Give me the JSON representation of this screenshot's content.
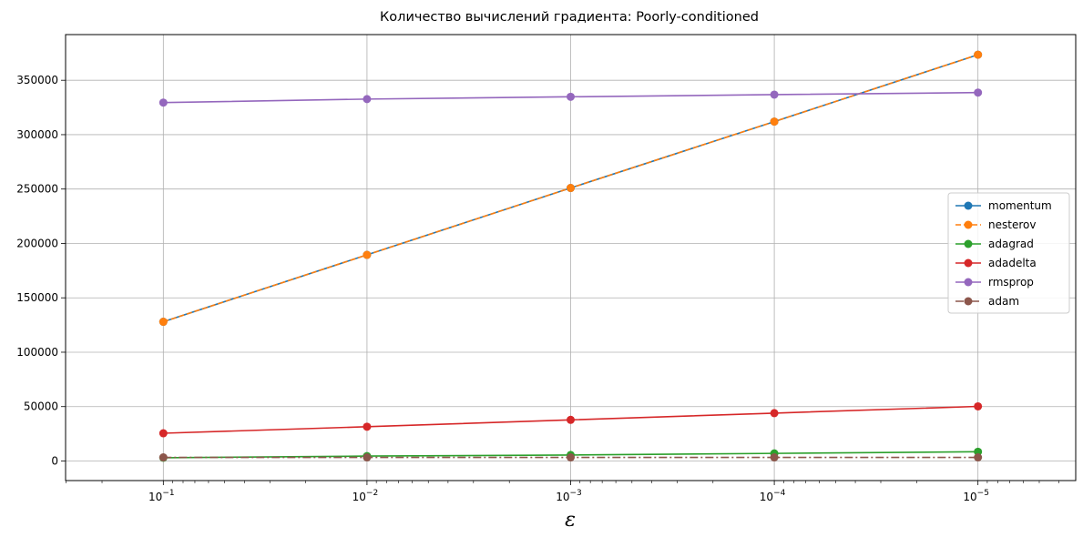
{
  "chart_data": {
    "type": "line",
    "title": "Количество вычислений градиента: Poorly-conditioned",
    "xlabel": "ε",
    "ylabel": "",
    "x_scale": "log",
    "x_inverted": true,
    "x": [
      0.1,
      0.01,
      0.001,
      0.0001,
      1e-05
    ],
    "x_tick_labels": [
      {
        "base": "10",
        "exp": "−1"
      },
      {
        "base": "10",
        "exp": "−2"
      },
      {
        "base": "10",
        "exp": "−3"
      },
      {
        "base": "10",
        "exp": "−4"
      },
      {
        "base": "10",
        "exp": "−5"
      }
    ],
    "ylim": [
      -18000,
      392000
    ],
    "y_ticks": [
      0,
      50000,
      100000,
      150000,
      200000,
      250000,
      300000,
      350000
    ],
    "y_tick_labels": [
      "0",
      "50000",
      "100000",
      "150000",
      "200000",
      "250000",
      "300000",
      "350000"
    ],
    "grid": true,
    "legend_position": "center-right",
    "series": [
      {
        "name": "momentum",
        "color": "#1f77b4",
        "dash": "solid",
        "values": [
          128000,
          189500,
          251000,
          312000,
          373500
        ]
      },
      {
        "name": "nesterov",
        "color": "#ff7f0e",
        "dash": "dashed",
        "values": [
          128000,
          189500,
          251000,
          312000,
          373500
        ]
      },
      {
        "name": "adagrad",
        "color": "#2ca02c",
        "dash": "solid",
        "values": [
          3000,
          4500,
          5500,
          7000,
          8500
        ]
      },
      {
        "name": "adadelta",
        "color": "#d62728",
        "dash": "solid",
        "values": [
          25500,
          31500,
          37800,
          44000,
          50200
        ]
      },
      {
        "name": "rmsprop",
        "color": "#9467bd",
        "dash": "solid",
        "values": [
          329500,
          332700,
          334800,
          336800,
          338700
        ]
      },
      {
        "name": "adam",
        "color": "#8c564b",
        "dash": "dashdot",
        "values": [
          3300,
          3300,
          3300,
          3300,
          3300
        ]
      }
    ]
  }
}
